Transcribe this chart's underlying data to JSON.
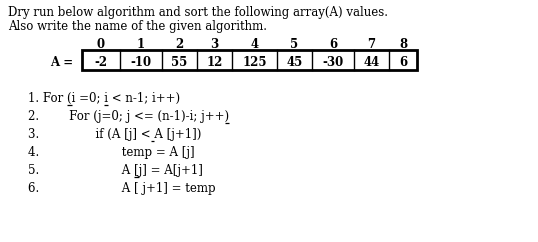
{
  "title_line1": "Dry run below algorithm and sort the following array(A) values.",
  "title_line2": "Also write the name of the given algorithm.",
  "indices": [
    "0",
    "1",
    "2",
    "3",
    "4",
    "5",
    "6",
    "7",
    "8"
  ],
  "array_values": [
    "-2",
    "-10",
    "55",
    "12",
    "125",
    "45",
    "-30",
    "44",
    "6"
  ],
  "array_label": "A = ",
  "bg_color": "#ffffff",
  "text_color": "#000000",
  "code_lines": [
    "1. For (i =0; i < n-1; i++)",
    "2.        For (j=0; j <= (n-1)-i; j++)",
    "3.               if (A [j] < A [j+1])",
    "4.                      temp = A [j]",
    "5.                      A [j] = A[j+1]",
    "6.                      A [ j+1] = temp"
  ],
  "underlines": [
    {
      "line": 0,
      "chars": [
        7,
        14
      ]
    },
    {
      "line": 1,
      "chars": [
        32
      ]
    },
    {
      "line": 2,
      "chars": [
        27
      ]
    },
    {
      "line": 4,
      "chars": [
        25
      ]
    }
  ],
  "font_size": 8.5,
  "title_font_size": 8.5
}
